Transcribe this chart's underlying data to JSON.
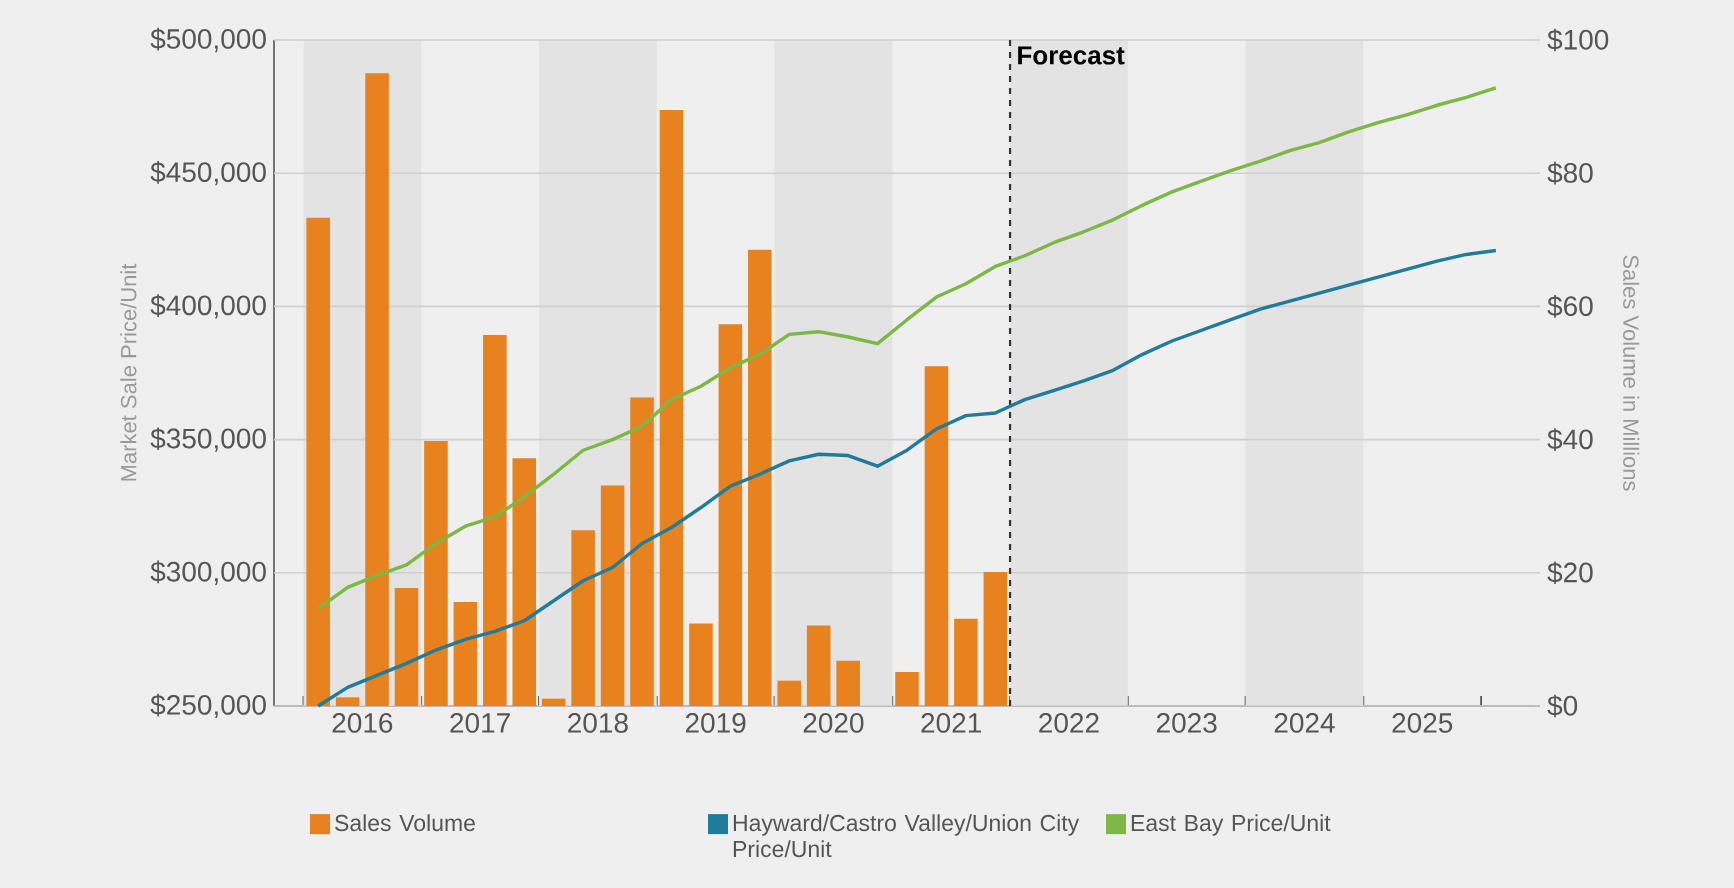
{
  "chart_data": {
    "type": "bar",
    "ylabel": "Market Sale Price/Unit",
    "y2label": "Sales Volume in Millions",
    "xlim": [
      2015.25,
      2026
    ],
    "xticks": [
      {
        "value": 2015.5,
        "label": null
      },
      {
        "value": 2016,
        "label": "2016"
      },
      {
        "value": 2016.5,
        "label": null
      },
      {
        "value": 2017,
        "label": "2017"
      },
      {
        "value": 2017.5,
        "label": null
      },
      {
        "value": 2018,
        "label": "2018"
      },
      {
        "value": 2018.5,
        "label": null
      },
      {
        "value": 2019,
        "label": "2019"
      },
      {
        "value": 2019.5,
        "label": null
      },
      {
        "value": 2020,
        "label": "2020"
      },
      {
        "value": 2020.5,
        "label": null
      },
      {
        "value": 2021,
        "label": "2021"
      },
      {
        "value": 2021.5,
        "label": null
      },
      {
        "value": 2022,
        "label": "2022"
      },
      {
        "value": 2022.5,
        "label": null
      },
      {
        "value": 2023,
        "label": "2023"
      },
      {
        "value": 2023.5,
        "label": null
      },
      {
        "value": 2024,
        "label": "2024"
      },
      {
        "value": 2024.5,
        "label": null
      },
      {
        "value": 2025,
        "label": "2025"
      },
      {
        "value": 2025.5,
        "label": null
      }
    ],
    "ylim": [
      250000,
      500000
    ],
    "yticks": [
      {
        "value": 250000,
        "label": "$250,000"
      },
      {
        "value": 300000,
        "label": "$300,000"
      },
      {
        "value": 350000,
        "label": "$350,000"
      },
      {
        "value": 400000,
        "label": "$400,000"
      },
      {
        "value": 450000,
        "label": "$450,000"
      },
      {
        "value": 500000,
        "label": "$500,000"
      }
    ],
    "y2lim": [
      0,
      100
    ],
    "y2ticks": [
      {
        "value": 0,
        "label": "$0"
      },
      {
        "value": 20,
        "label": "$20"
      },
      {
        "value": 40,
        "label": "$40"
      },
      {
        "value": 60,
        "label": "$60"
      },
      {
        "value": 80,
        "label": "$80"
      },
      {
        "value": 100,
        "label": "$100"
      }
    ],
    "grid": "y",
    "legend": "bottom",
    "bands": [
      {
        "axis": "x",
        "from": 2015.5,
        "to": 2016.5,
        "color": "#e3e3e3"
      },
      {
        "axis": "x",
        "from": 2017.5,
        "to": 2018.5,
        "color": "#e3e3e3"
      },
      {
        "axis": "x",
        "from": 2019.5,
        "to": 2020.5,
        "color": "#e3e3e3"
      },
      {
        "axis": "x",
        "from": 2021.5,
        "to": 2022.5,
        "color": "#e3e3e3"
      },
      {
        "axis": "x",
        "from": 2023.5,
        "to": 2024.5,
        "color": "#e3e3e3"
      }
    ],
    "ref_lines": [
      {
        "axis": "x",
        "value": 2021.5,
        "label": "Forecast",
        "color": "#333333",
        "line_style": "dashed"
      }
    ],
    "series": [
      {
        "name": "Sales Volume",
        "axis": "y2",
        "color": "#e8821e",
        "x": [
          2015.625,
          2015.875,
          2016.125,
          2016.375,
          2016.625,
          2016.875,
          2017.125,
          2017.375,
          2017.625,
          2017.875,
          2018.125,
          2018.375,
          2018.625,
          2018.875,
          2019.125,
          2019.375,
          2019.625,
          2019.875,
          2020.125,
          2020.375,
          2020.625,
          2020.875,
          2021.125,
          2021.375
        ],
        "values": [
          73.3,
          1.3,
          95,
          17.7,
          39.8,
          15.6,
          55.7,
          37.2,
          1.1,
          26.4,
          33.1,
          46.3,
          89.5,
          12.4,
          57.3,
          68.5,
          3.8,
          12.1,
          6.8,
          null,
          5.1,
          51,
          13.1,
          20.1
        ]
      },
      {
        "name": "Hayward/Castro Valley/Union City Price/Unit",
        "type": "line",
        "color": "#1f7c9c",
        "x": [
          2015.625,
          2015.875,
          2016.125,
          2016.375,
          2016.625,
          2016.875,
          2017.125,
          2017.375,
          2017.625,
          2017.875,
          2018.125,
          2018.375,
          2018.625,
          2018.875,
          2019.125,
          2019.375,
          2019.625,
          2019.875,
          2020.125,
          2020.375,
          2020.625,
          2020.875,
          2021.125,
          2021.375,
          2021.625,
          2021.875,
          2022.125,
          2022.375,
          2022.625,
          2022.875,
          2023.125,
          2023.375,
          2023.625,
          2023.875,
          2024.125,
          2024.375,
          2024.625,
          2024.875,
          2025.125,
          2025.375,
          2025.625
        ],
        "values": [
          250000,
          257000,
          261500,
          266000,
          271000,
          275000,
          278000,
          282000,
          289500,
          297000,
          302000,
          311000,
          317000,
          324500,
          332500,
          337000,
          342000,
          344500,
          344000,
          340000,
          346000,
          354000,
          359000,
          360000,
          365000,
          368500,
          372000,
          376000,
          382000,
          387000,
          391000,
          395000,
          399000,
          402000,
          405000,
          408000,
          411000,
          414000,
          417000,
          419500,
          421000
        ]
      },
      {
        "name": "East Bay Price/Unit",
        "type": "line",
        "color": "#7cb843",
        "x": [
          2015.625,
          2015.875,
          2016.125,
          2016.375,
          2016.625,
          2016.875,
          2017.125,
          2017.375,
          2017.625,
          2017.875,
          2018.125,
          2018.375,
          2018.625,
          2018.875,
          2019.125,
          2019.375,
          2019.625,
          2019.875,
          2020.125,
          2020.375,
          2020.625,
          2020.875,
          2021.125,
          2021.375,
          2021.625,
          2021.875,
          2022.125,
          2022.375,
          2022.625,
          2022.875,
          2023.125,
          2023.375,
          2023.625,
          2023.875,
          2024.125,
          2024.375,
          2024.625,
          2024.875,
          2025.125,
          2025.375,
          2025.625
        ],
        "values": [
          286500,
          294500,
          299000,
          303000,
          311000,
          317500,
          321000,
          328500,
          337000,
          346000,
          350000,
          355000,
          365000,
          370000,
          377000,
          382000,
          389500,
          390500,
          388500,
          386000,
          395000,
          403500,
          408500,
          415000,
          419000,
          424000,
          428000,
          432500,
          438000,
          443000,
          447000,
          451000,
          454500,
          458500,
          461500,
          465500,
          469000,
          472000,
          475500,
          478500,
          482000
        ]
      }
    ]
  }
}
